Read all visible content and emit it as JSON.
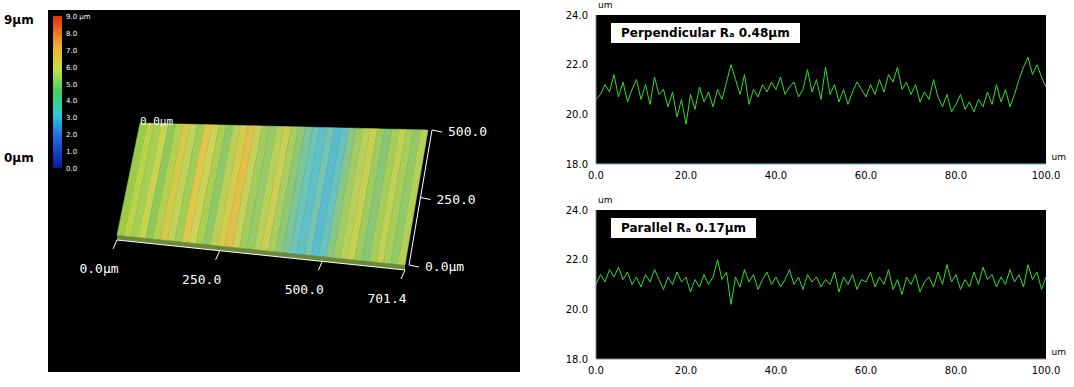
{
  "surface": {
    "type": "surface",
    "side_labels": {
      "top": "9µm",
      "bottom": "0µm"
    },
    "colorbar_range": [
      0,
      9
    ],
    "colorbar_ticks": [
      {
        "value": 9,
        "label": "9.0 µm"
      },
      {
        "value": 8,
        "label": "8.0"
      },
      {
        "value": 7,
        "label": "7.0"
      },
      {
        "value": 6,
        "label": "6.0"
      },
      {
        "value": 5,
        "label": "5.0"
      },
      {
        "value": 4,
        "label": "4.0"
      },
      {
        "value": 3,
        "label": "3.0"
      },
      {
        "value": 2,
        "label": "2.0"
      },
      {
        "value": 1,
        "label": "1.0"
      },
      {
        "value": 0,
        "label": "0.0"
      }
    ],
    "xlim": [
      0,
      701.4
    ],
    "ylim": [
      0,
      500
    ],
    "xticks": [
      {
        "value": 0,
        "label": "0.0µm"
      },
      {
        "value": 250,
        "label": "250.0"
      },
      {
        "value": 500,
        "label": "500.0"
      },
      {
        "value": 701.4,
        "label": "701.4"
      }
    ],
    "yticks": [
      {
        "value": 0,
        "label": "0.0µm"
      },
      {
        "value": 250,
        "label": "250.0"
      },
      {
        "value": 500,
        "label": "500.0"
      }
    ],
    "corner_label": "0.0µm"
  },
  "chart_data": [
    {
      "type": "line",
      "title": "Perpendicular Rₐ 0.48µm",
      "x_label": "um",
      "y_label": "um",
      "color": "#33dd33",
      "xlim": [
        0,
        100
      ],
      "ylim": [
        18,
        24
      ],
      "xticks": [
        {
          "value": 0,
          "label": "0.0"
        },
        {
          "value": 20,
          "label": "20.0"
        },
        {
          "value": 40,
          "label": "40.0"
        },
        {
          "value": 60,
          "label": "60.0"
        },
        {
          "value": 80,
          "label": "80.0"
        },
        {
          "value": 100,
          "label": "100.0"
        }
      ],
      "yticks": [
        {
          "value": 18,
          "label": "18.0"
        },
        {
          "value": 20,
          "label": "20.0"
        },
        {
          "value": 22,
          "label": "22.0"
        },
        {
          "value": 24,
          "label": "24.0"
        }
      ],
      "x": [
        0,
        1,
        2,
        3,
        4,
        5,
        6,
        7,
        8,
        9,
        10,
        11,
        12,
        13,
        14,
        15,
        16,
        17,
        18,
        19,
        20,
        21,
        22,
        23,
        24,
        25,
        26,
        27,
        28,
        29,
        30,
        31,
        32,
        33,
        34,
        35,
        36,
        37,
        38,
        39,
        40,
        41,
        42,
        43,
        44,
        45,
        46,
        47,
        48,
        49,
        50,
        51,
        52,
        53,
        54,
        55,
        56,
        57,
        58,
        59,
        60,
        61,
        62,
        63,
        64,
        65,
        66,
        67,
        68,
        69,
        70,
        71,
        72,
        73,
        74,
        75,
        76,
        77,
        78,
        79,
        80,
        81,
        82,
        83,
        84,
        85,
        86,
        87,
        88,
        89,
        90,
        91,
        92,
        93,
        94,
        95,
        96,
        97,
        98,
        99,
        100
      ],
      "values": [
        20.6,
        20.8,
        21.2,
        20.9,
        21.6,
        20.7,
        21.3,
        20.5,
        21.0,
        21.4,
        20.6,
        21.2,
        20.4,
        21.5,
        20.8,
        21.0,
        20.3,
        20.9,
        19.9,
        20.6,
        19.6,
        20.8,
        20.2,
        21.1,
        20.5,
        20.9,
        20.3,
        21.0,
        20.6,
        21.3,
        22.0,
        21.4,
        20.8,
        21.6,
        20.4,
        21.0,
        20.7,
        21.2,
        20.9,
        21.3,
        21.0,
        21.5,
        20.8,
        21.1,
        21.3,
        20.7,
        21.0,
        21.8,
        20.9,
        21.4,
        20.6,
        21.9,
        20.8,
        21.2,
        20.5,
        21.0,
        20.4,
        20.9,
        21.3,
        21.0,
        20.7,
        21.2,
        20.8,
        21.4,
        20.9,
        21.6,
        21.3,
        21.9,
        21.0,
        21.3,
        20.8,
        21.2,
        20.5,
        20.9,
        20.6,
        21.4,
        20.7,
        20.3,
        20.8,
        20.1,
        20.4,
        20.8,
        20.2,
        20.5,
        20.1,
        20.6,
        20.3,
        20.9,
        20.4,
        21.2,
        20.5,
        21.0,
        20.3,
        20.8,
        21.4,
        21.9,
        22.3,
        21.6,
        22.0,
        21.5,
        21.1
      ]
    },
    {
      "type": "line",
      "title": "Parallel Rₐ 0.17µm",
      "x_label": "um",
      "y_label": "um",
      "color": "#33dd33",
      "xlim": [
        0,
        100
      ],
      "ylim": [
        18,
        24
      ],
      "xticks": [
        {
          "value": 0,
          "label": "0.0"
        },
        {
          "value": 20,
          "label": "20.0"
        },
        {
          "value": 40,
          "label": "40.0"
        },
        {
          "value": 60,
          "label": "60.0"
        },
        {
          "value": 80,
          "label": "80.0"
        },
        {
          "value": 100,
          "label": "100.0"
        }
      ],
      "yticks": [
        {
          "value": 18,
          "label": "18.0"
        },
        {
          "value": 20,
          "label": "20.0"
        },
        {
          "value": 22,
          "label": "22.0"
        },
        {
          "value": 24,
          "label": "24.0"
        }
      ],
      "x": [
        0,
        1,
        2,
        3,
        4,
        5,
        6,
        7,
        8,
        9,
        10,
        11,
        12,
        13,
        14,
        15,
        16,
        17,
        18,
        19,
        20,
        21,
        22,
        23,
        24,
        25,
        26,
        27,
        28,
        29,
        30,
        31,
        32,
        33,
        34,
        35,
        36,
        37,
        38,
        39,
        40,
        41,
        42,
        43,
        44,
        45,
        46,
        47,
        48,
        49,
        50,
        51,
        52,
        53,
        54,
        55,
        56,
        57,
        58,
        59,
        60,
        61,
        62,
        63,
        64,
        65,
        66,
        67,
        68,
        69,
        70,
        71,
        72,
        73,
        74,
        75,
        76,
        77,
        78,
        79,
        80,
        81,
        82,
        83,
        84,
        85,
        86,
        87,
        88,
        89,
        90,
        91,
        92,
        93,
        94,
        95,
        96,
        97,
        98,
        99,
        100
      ],
      "values": [
        21.0,
        21.4,
        21.1,
        21.6,
        21.3,
        21.7,
        21.2,
        21.5,
        21.0,
        21.3,
        20.9,
        21.4,
        21.1,
        21.6,
        21.2,
        20.8,
        21.3,
        21.0,
        21.5,
        21.1,
        21.3,
        20.7,
        21.2,
        20.9,
        21.4,
        21.0,
        21.3,
        22.0,
        21.2,
        21.5,
        20.2,
        21.3,
        20.9,
        21.6,
        21.1,
        21.4,
        20.8,
        21.2,
        21.5,
        21.0,
        21.3,
        20.9,
        21.2,
        21.6,
        21.0,
        21.3,
        20.8,
        21.4,
        21.1,
        21.3,
        20.9,
        21.2,
        21.0,
        21.5,
        20.7,
        21.3,
        21.0,
        21.4,
        20.8,
        21.2,
        21.1,
        21.5,
        20.9,
        21.3,
        21.0,
        21.6,
        20.8,
        21.2,
        20.6,
        21.3,
        21.0,
        21.4,
        20.7,
        21.1,
        21.3,
        20.9,
        21.5,
        21.0,
        21.8,
        21.1,
        21.4,
        20.8,
        21.2,
        20.9,
        21.5,
        21.0,
        21.7,
        21.2,
        21.4,
        20.9,
        21.3,
        21.0,
        21.6,
        21.1,
        21.4,
        20.9,
        21.8,
        21.2,
        21.5,
        20.8,
        21.3
      ]
    }
  ]
}
